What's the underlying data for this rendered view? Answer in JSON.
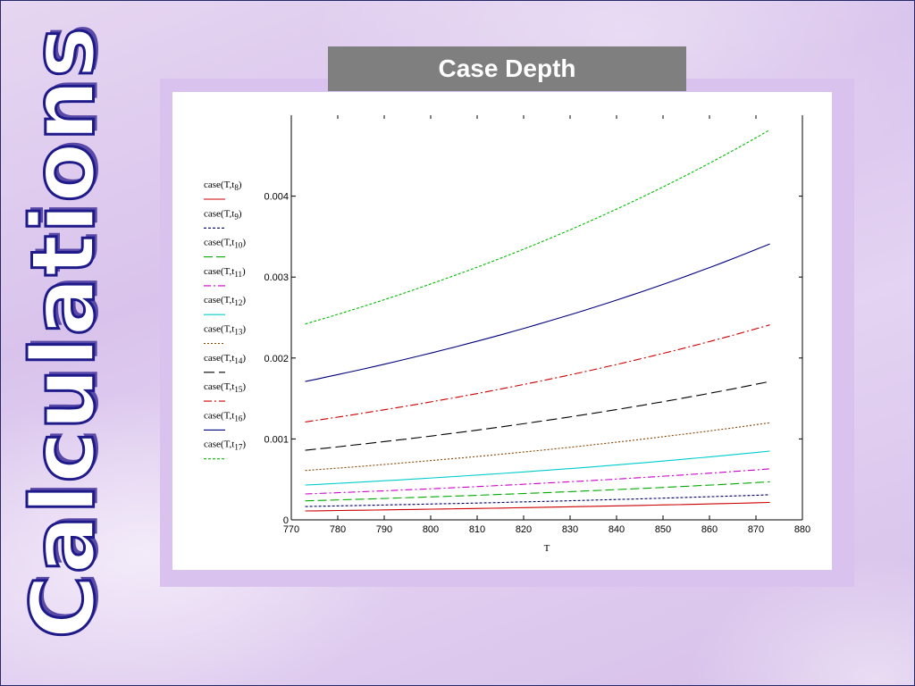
{
  "slide": {
    "side_title": "Calculations",
    "header_title": "Case Depth"
  },
  "chart_data": {
    "type": "line",
    "title": "Case Depth",
    "xlabel": "T",
    "ylabel": "",
    "xlim": [
      770,
      880
    ],
    "ylim": [
      0,
      0.005
    ],
    "x_ticks": [
      "770",
      "780",
      "790",
      "800",
      "810",
      "820",
      "830",
      "840",
      "850",
      "860",
      "870",
      "880"
    ],
    "y_ticks": [
      {
        "v": 0,
        "label": "0"
      },
      {
        "v": 0.001,
        "label": "0.001"
      },
      {
        "v": 0.002,
        "label": "0.002"
      },
      {
        "v": 0.003,
        "label": "0.003"
      },
      {
        "v": 0.004,
        "label": "0.004"
      }
    ],
    "x": [
      773,
      873
    ],
    "series": [
      {
        "name": "case(T,t8)",
        "fn": "case(T,t",
        "sub": "8",
        "color": "#cc0000",
        "dash": "",
        "values": [
          0.00011,
          0.000215
        ]
      },
      {
        "name": "case(T,t9)",
        "fn": "case(T,t",
        "sub": "9",
        "color": "#000066",
        "dash": "3,2",
        "values": [
          0.000165,
          0.00031
        ]
      },
      {
        "name": "case(T,t10)",
        "fn": "case(T,t",
        "sub": "10",
        "color": "#00aa00",
        "dash": "10,4",
        "values": [
          0.000235,
          0.00047
        ]
      },
      {
        "name": "case(T,t11)",
        "fn": "case(T,t",
        "sub": "11",
        "color": "#cc00cc",
        "dash": "8,3,2,3",
        "values": [
          0.00032,
          0.00063
        ]
      },
      {
        "name": "case(T,t12)",
        "fn": "case(T,t",
        "sub": "12",
        "color": "#00cccc",
        "dash": "",
        "values": [
          0.00043,
          0.00085
        ]
      },
      {
        "name": "case(T,t13)",
        "fn": "case(T,t",
        "sub": "13",
        "color": "#884400",
        "dash": "2,2",
        "values": [
          0.00061,
          0.0012
        ]
      },
      {
        "name": "case(T,t14)",
        "fn": "case(T,t",
        "sub": "14",
        "color": "#000000",
        "dash": "12,5",
        "values": [
          0.00086,
          0.00171
        ]
      },
      {
        "name": "case(T,t15)",
        "fn": "case(T,t",
        "sub": "15",
        "color": "#cc0000",
        "dash": "9,3,2,3",
        "values": [
          0.00121,
          0.00241
        ]
      },
      {
        "name": "case(T,t16)",
        "fn": "case(T,t",
        "sub": "16",
        "color": "#000080",
        "dash": "",
        "values": [
          0.00171,
          0.00341
        ]
      },
      {
        "name": "case(T,t17)",
        "fn": "case(T,t",
        "sub": "17",
        "color": "#00bb00",
        "dash": "3,2",
        "values": [
          0.00242,
          0.00482
        ]
      }
    ]
  }
}
